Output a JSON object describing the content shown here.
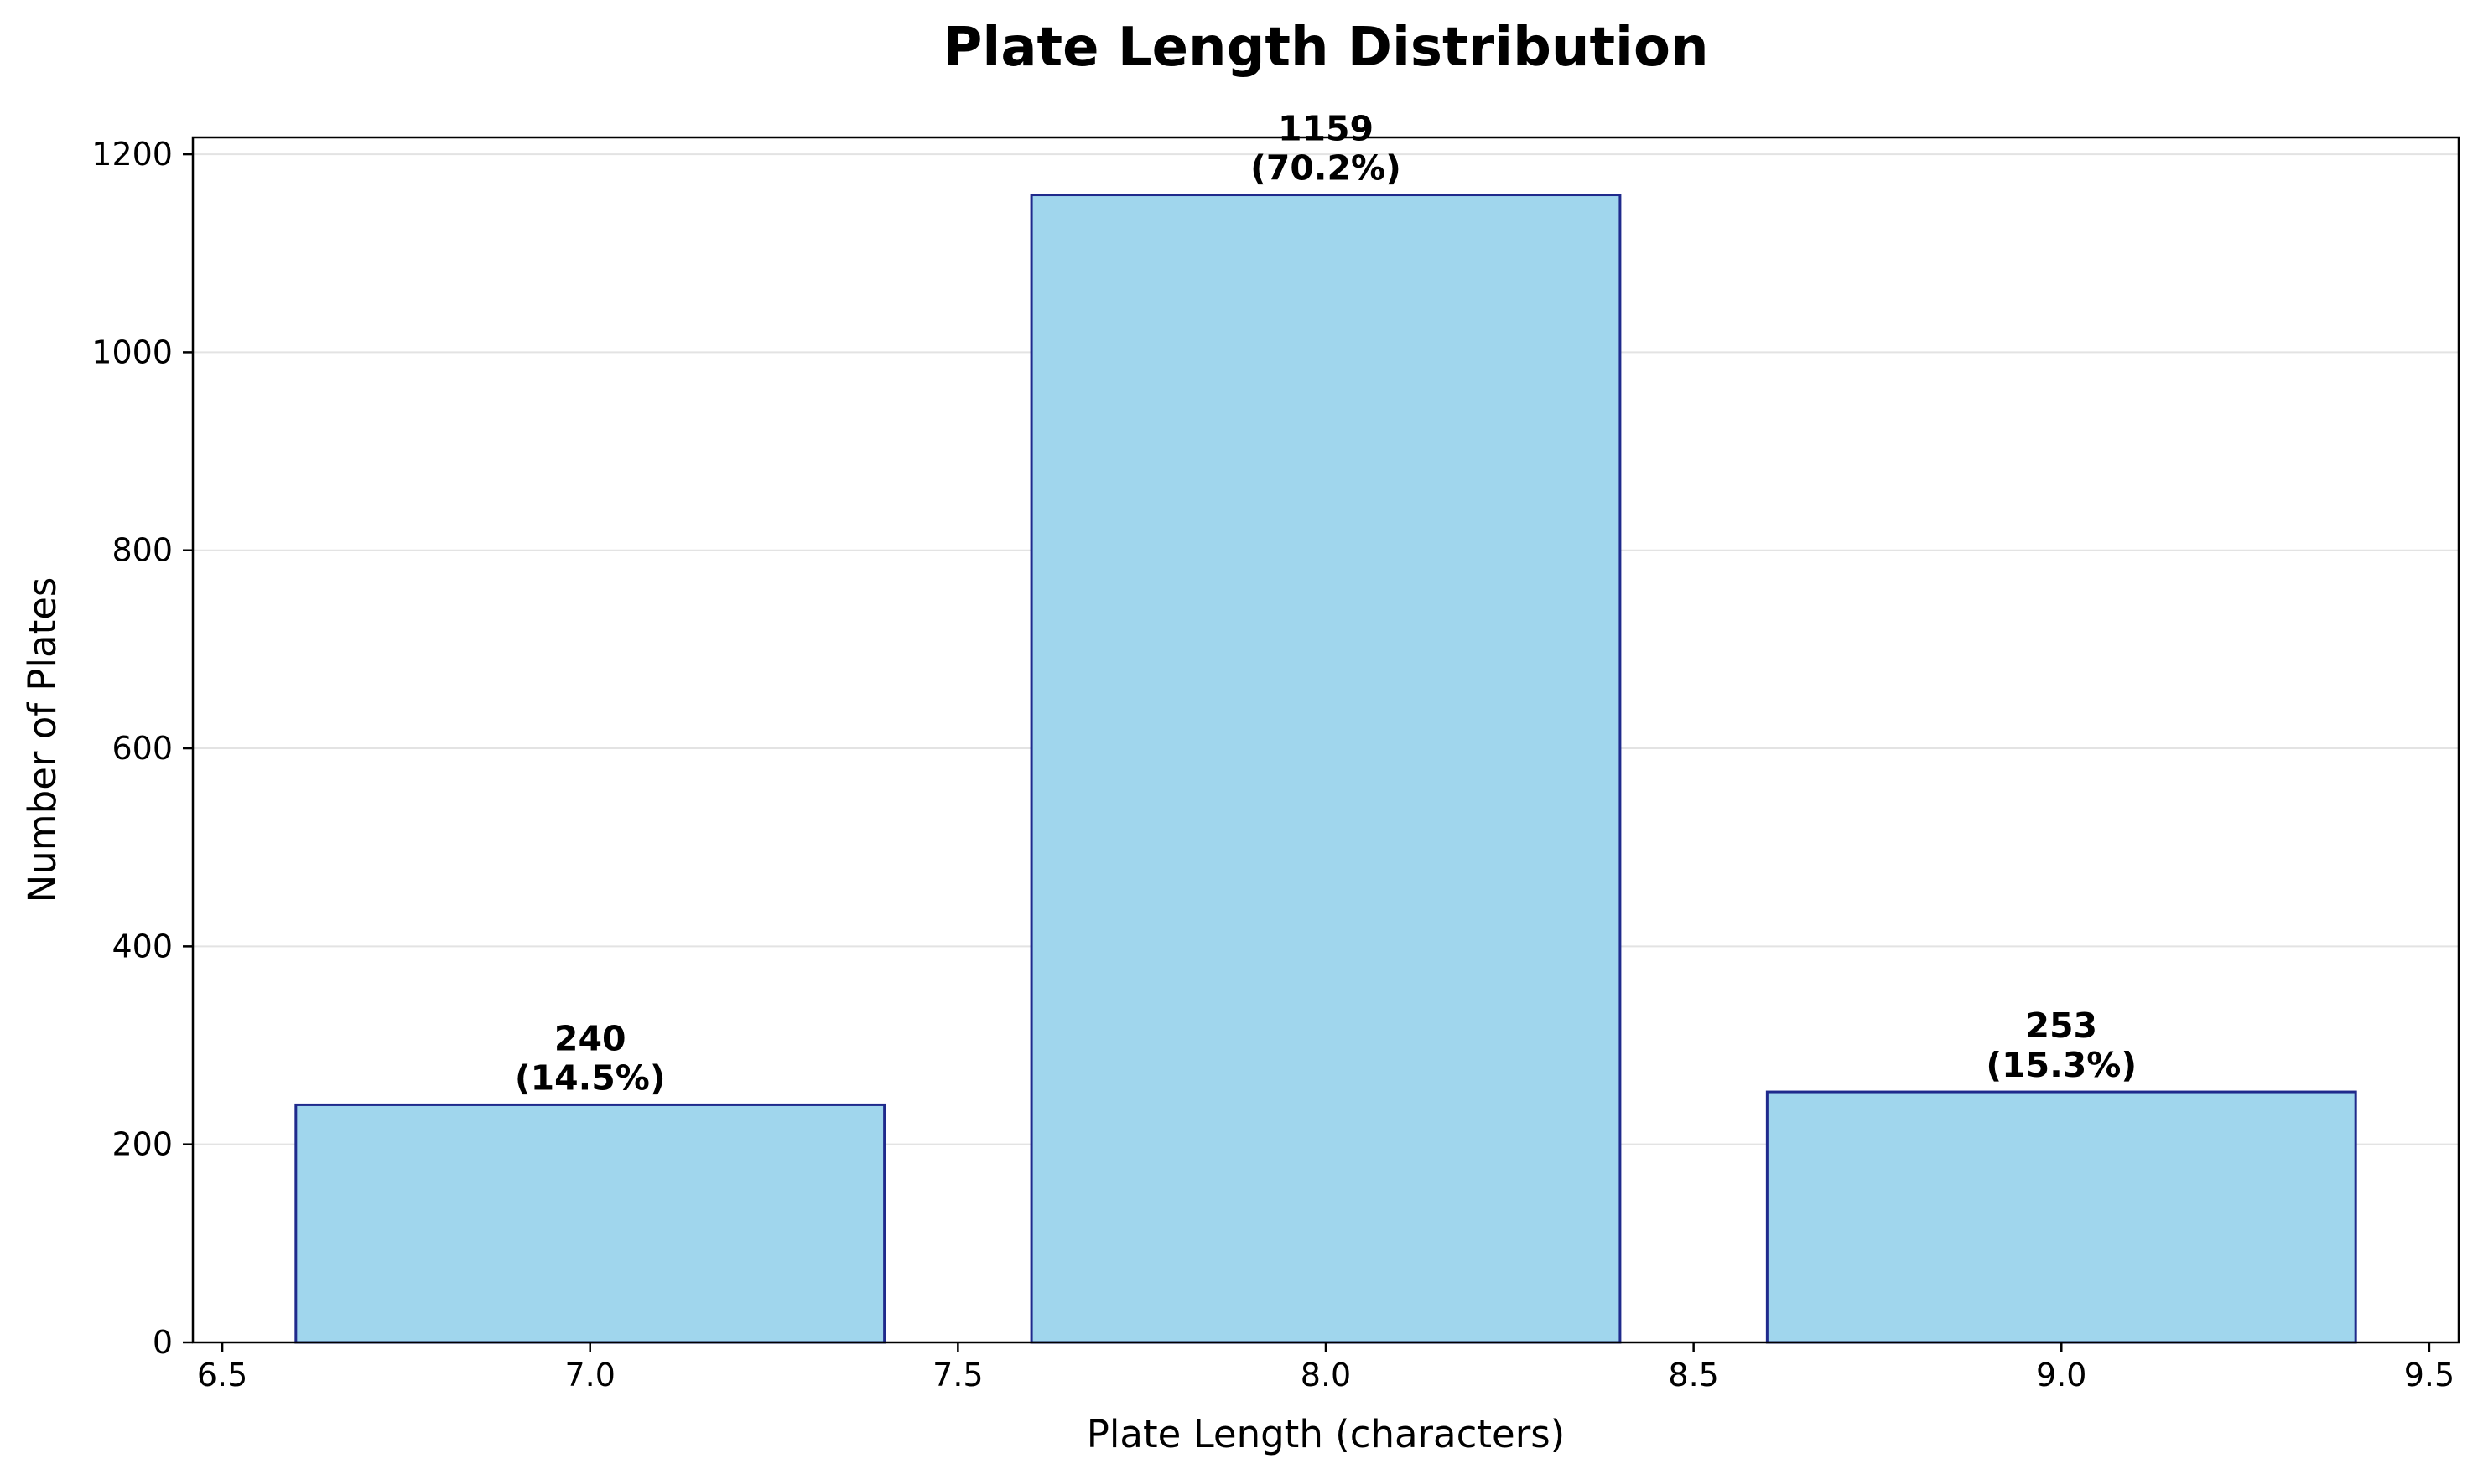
{
  "chart_data": {
    "type": "bar",
    "title": "Plate Length Distribution",
    "xlabel": "Plate Length (characters)",
    "ylabel": "Number of Plates",
    "x": [
      7.0,
      8.0,
      9.0
    ],
    "values": [
      240,
      1159,
      253
    ],
    "bar_labels": [
      [
        "240",
        "(14.5%)"
      ],
      [
        "1159",
        "(70.2%)"
      ],
      [
        "253",
        "(15.3%)"
      ]
    ],
    "xlim": [
      6.46,
      9.54
    ],
    "ylim": [
      0,
      1217
    ],
    "x_ticks": [
      6.5,
      7.0,
      7.5,
      8.0,
      8.5,
      9.0,
      9.5
    ],
    "x_tick_labels": [
      "6.5",
      "7.0",
      "7.5",
      "8.0",
      "8.5",
      "9.0",
      "9.5"
    ],
    "y_ticks": [
      0,
      200,
      400,
      600,
      800,
      1000,
      1200
    ],
    "y_tick_labels": [
      "0",
      "200",
      "400",
      "600",
      "800",
      "1000",
      "1200"
    ],
    "bar_width": 0.8,
    "grid": "y-major",
    "legend": "none",
    "colors": {
      "bar_fill": "#a0d6ed",
      "bar_edge": "#1f2a8c",
      "grid": "#e3e3e3",
      "axis": "#000000"
    }
  }
}
